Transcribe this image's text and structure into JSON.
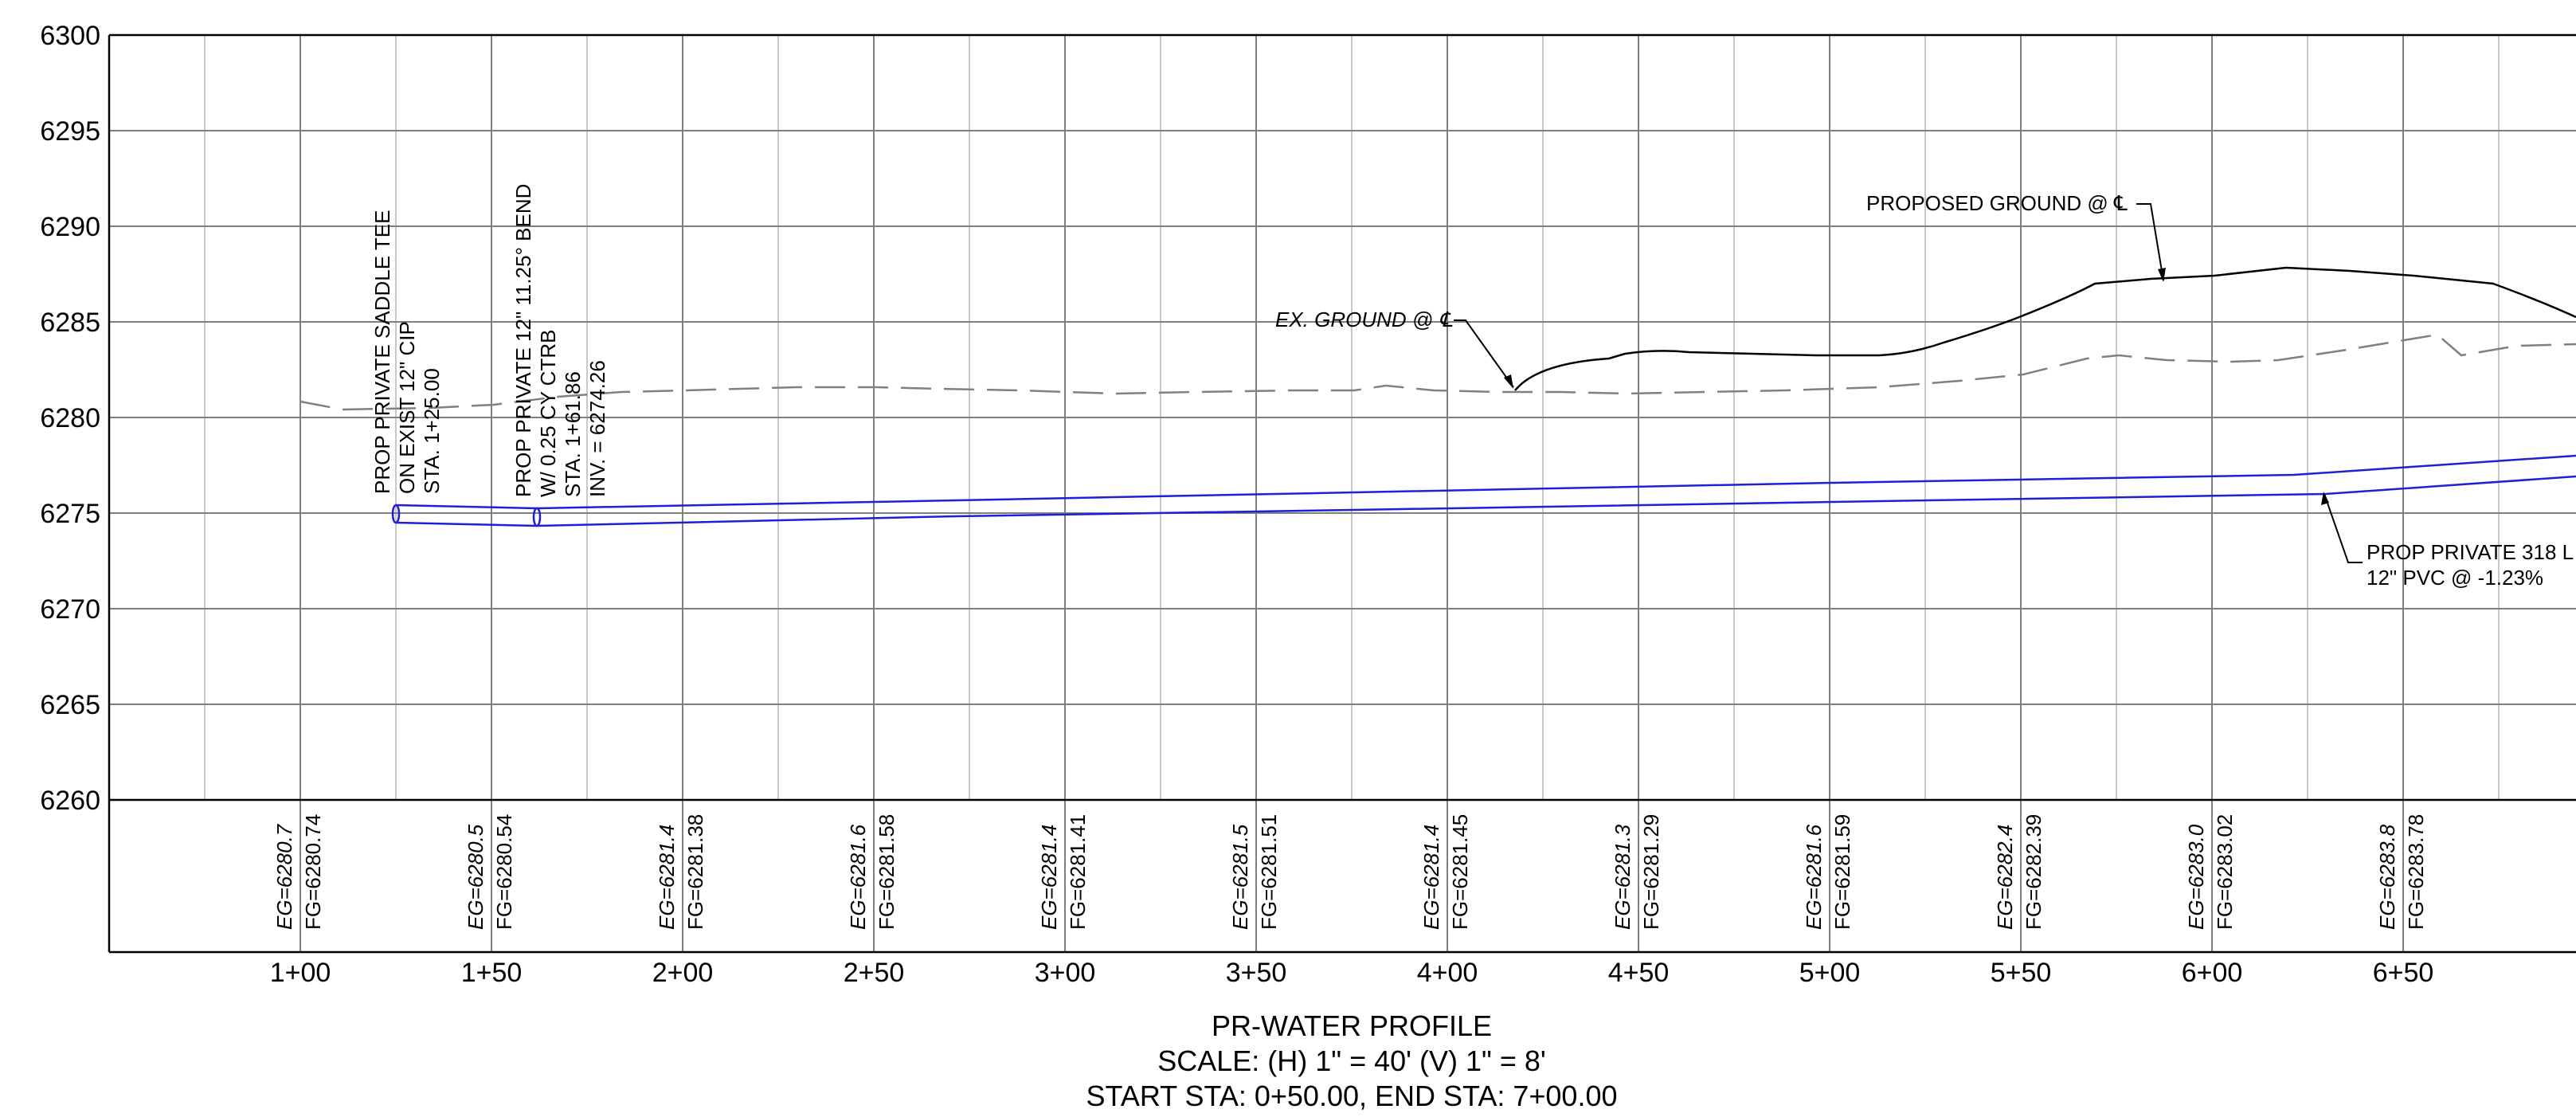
{
  "profile": {
    "title": "PR-WATER PROFILE",
    "scale": "SCALE: (H) 1\" = 40' (V) 1\" = 8'",
    "stations_range": "START STA: 0+50.00, END STA: 7+00.00",
    "elevation_ticks": [
      "6300",
      "6295",
      "6290",
      "6285",
      "6280",
      "6275",
      "6270",
      "6265",
      "6260"
    ],
    "station_ticks": [
      "1+00",
      "1+50",
      "2+00",
      "2+50",
      "3+00",
      "3+50",
      "4+00",
      "4+50",
      "5+00",
      "5+50",
      "6+00",
      "6+50"
    ],
    "station_readouts": [
      {
        "eg": "EG=6280.7",
        "fg": "FG=6280.74"
      },
      {
        "eg": "EG=6280.5",
        "fg": "FG=6280.54"
      },
      {
        "eg": "EG=6281.4",
        "fg": "FG=6281.38"
      },
      {
        "eg": "EG=6281.6",
        "fg": "FG=6281.58"
      },
      {
        "eg": "EG=6281.4",
        "fg": "FG=6281.41"
      },
      {
        "eg": "EG=6281.5",
        "fg": "FG=6281.51"
      },
      {
        "eg": "EG=6281.4",
        "fg": "FG=6281.45"
      },
      {
        "eg": "EG=6281.3",
        "fg": "FG=6281.29"
      },
      {
        "eg": "EG=6281.6",
        "fg": "FG=6281.59"
      },
      {
        "eg": "EG=6282.4",
        "fg": "FG=6282.39"
      },
      {
        "eg": "EG=6283.0",
        "fg": "FG=6283.02"
      },
      {
        "eg": "EG=6283.8",
        "fg": "FG=6283.78"
      }
    ],
    "callouts": {
      "saddle_tee": {
        "line1": "PROP PRIVATE SADDLE TEE",
        "line2": "ON EXIST 12\" CIP",
        "line3": "STA. 1+25.00"
      },
      "bend": {
        "line1": "PROP PRIVATE 12\" 11.25° BEND",
        "line2": "W/ 0.25 CY CTRB",
        "line3": "STA. 1+61.86",
        "line4": "INV. = 6274.26"
      },
      "existing_ground": "EX. GROUND @ ℄",
      "proposed_ground": "PROPOSED GROUND @ ℄",
      "pipe_run": {
        "line1": "PROP PRIVATE 318 L",
        "line2": "12\" PVC @ -1.23%"
      }
    },
    "colors": {
      "pipe": "#1f1fd6",
      "grid_major": "#7f7f7f",
      "grid_minor": "#c8c8c8",
      "existing_ground": "#808080",
      "proposed_ground": "#000000",
      "text": "#000000"
    }
  }
}
